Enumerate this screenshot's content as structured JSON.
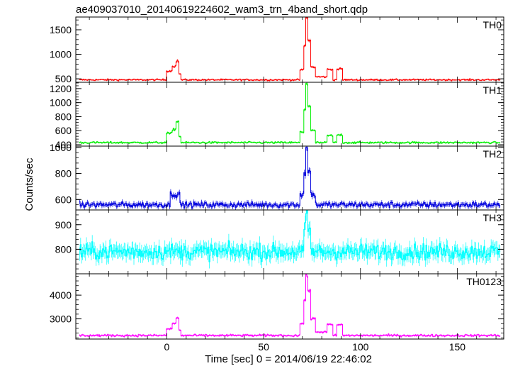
{
  "chart_data": {
    "type": "line",
    "title": "ae409037010_20140619224602_wam3_trn_4band_short.qdp",
    "xlabel": "Time [sec] 0 = 2014/06/19 22:46:02",
    "ylabel": "Counts/sec",
    "xlim": [
      -47,
      174
    ],
    "x_ticks": [
      0,
      50,
      100,
      150
    ],
    "x_tick_labels": [
      "0",
      "50",
      "100",
      "150"
    ],
    "panels": [
      {
        "name": "TH0",
        "color": "#ff0000",
        "ylim": [
          430,
          1760
        ],
        "yticks": [
          500,
          1000,
          1500
        ],
        "ytick_labels": [
          "500",
          "1000",
          "1500"
        ],
        "baseline": 480,
        "noise": 15,
        "features": [
          {
            "x0": 0,
            "x1": 3,
            "level": 660
          },
          {
            "x0": 3,
            "x1": 5,
            "level": 760
          },
          {
            "x0": 5,
            "x1": 6.5,
            "level": 860
          },
          {
            "x0": 6.5,
            "x1": 7.5,
            "level": 600
          },
          {
            "x0": 69,
            "x1": 71,
            "level": 680
          },
          {
            "x0": 71,
            "x1": 72,
            "level": 1180
          },
          {
            "x0": 72,
            "x1": 73,
            "level": 1740
          },
          {
            "x0": 73,
            "x1": 74.5,
            "level": 1290
          },
          {
            "x0": 74.5,
            "x1": 77,
            "level": 740
          },
          {
            "x0": 77,
            "x1": 83,
            "level": 540
          },
          {
            "x0": 83,
            "x1": 86,
            "level": 690
          },
          {
            "x0": 88,
            "x1": 91,
            "level": 700
          }
        ]
      },
      {
        "name": "TH1",
        "color": "#00ee00",
        "ylim": [
          380,
          1290
        ],
        "yticks": [
          400,
          600,
          800,
          1000,
          1200
        ],
        "ytick_labels": [
          "400",
          "600",
          "800",
          "1000",
          "1200"
        ],
        "baseline": 430,
        "noise": 12,
        "features": [
          {
            "x0": 0,
            "x1": 3,
            "level": 560
          },
          {
            "x0": 3,
            "x1": 5,
            "level": 620
          },
          {
            "x0": 5,
            "x1": 6.5,
            "level": 730
          },
          {
            "x0": 6.5,
            "x1": 7.5,
            "level": 520
          },
          {
            "x0": 69,
            "x1": 71,
            "level": 580
          },
          {
            "x0": 71,
            "x1": 72,
            "level": 900
          },
          {
            "x0": 72,
            "x1": 73,
            "level": 1280
          },
          {
            "x0": 73,
            "x1": 74.5,
            "level": 950
          },
          {
            "x0": 74.5,
            "x1": 77,
            "level": 600
          },
          {
            "x0": 83,
            "x1": 86,
            "level": 530
          },
          {
            "x0": 88,
            "x1": 91,
            "level": 540
          }
        ]
      },
      {
        "name": "TH2",
        "color": "#0000dd",
        "ylim": [
          520,
          1010
        ],
        "yticks": [
          600,
          800,
          1000
        ],
        "ytick_labels": [
          "600",
          "800",
          "1000"
        ],
        "baseline": 560,
        "noise": 20,
        "features": [
          {
            "x0": 2,
            "x1": 7,
            "level": 640
          },
          {
            "x0": 69,
            "x1": 71,
            "level": 640
          },
          {
            "x0": 71,
            "x1": 72,
            "level": 800
          },
          {
            "x0": 72,
            "x1": 73,
            "level": 990
          },
          {
            "x0": 73,
            "x1": 74.5,
            "level": 820
          },
          {
            "x0": 74.5,
            "x1": 77,
            "level": 640
          }
        ]
      },
      {
        "name": "TH3",
        "color": "#00ffff",
        "ylim": [
          700,
          960
        ],
        "yticks": [
          800,
          900
        ],
        "ytick_labels": [
          "800",
          "900"
        ],
        "baseline": 790,
        "noise": 30,
        "features": [
          {
            "x0": 71,
            "x1": 72,
            "level": 880
          },
          {
            "x0": 72,
            "x1": 73,
            "level": 940
          },
          {
            "x0": 73,
            "x1": 74.5,
            "level": 880
          }
        ]
      },
      {
        "name": "TH0123",
        "color": "#ff00ff",
        "ylim": [
          2150,
          4900
        ],
        "yticks": [
          3000,
          4000
        ],
        "ytick_labels": [
          "3000",
          "4000"
        ],
        "baseline": 2300,
        "noise": 40,
        "features": [
          {
            "x0": 0,
            "x1": 3,
            "level": 2580
          },
          {
            "x0": 3,
            "x1": 5,
            "level": 2800
          },
          {
            "x0": 5,
            "x1": 6.5,
            "level": 3050
          },
          {
            "x0": 6.5,
            "x1": 7.5,
            "level": 2500
          },
          {
            "x0": 69,
            "x1": 71,
            "level": 2800
          },
          {
            "x0": 71,
            "x1": 72,
            "level": 3800
          },
          {
            "x0": 72,
            "x1": 73,
            "level": 4800
          },
          {
            "x0": 73,
            "x1": 74.5,
            "level": 4200
          },
          {
            "x0": 74.5,
            "x1": 77,
            "level": 3000
          },
          {
            "x0": 77,
            "x1": 83,
            "level": 2450
          },
          {
            "x0": 83,
            "x1": 86,
            "level": 2750
          },
          {
            "x0": 88,
            "x1": 91,
            "level": 2750
          }
        ]
      }
    ]
  }
}
